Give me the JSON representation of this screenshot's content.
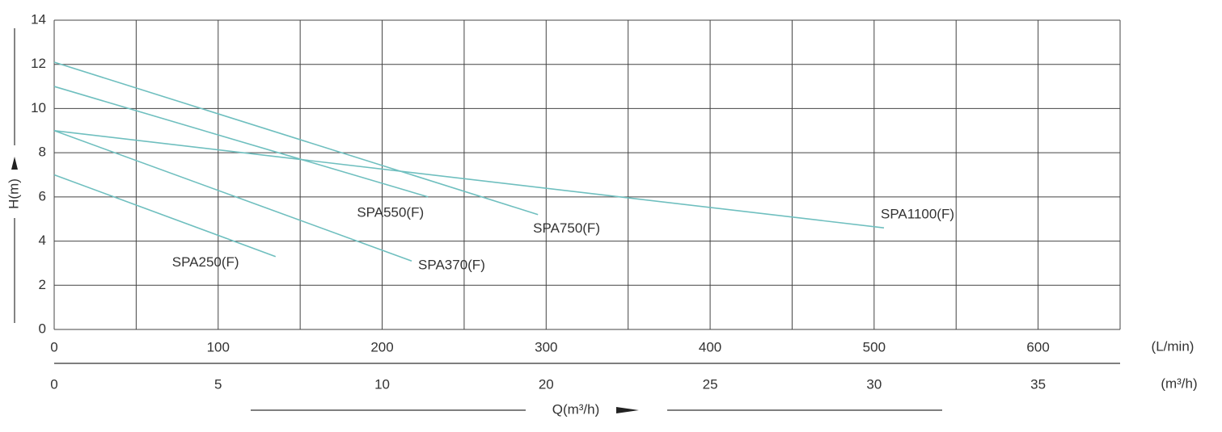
{
  "chart_data": {
    "type": "line",
    "x_label": "(L/min)",
    "x2_label": "(m³/h)",
    "x_title": "Q(m³/h)",
    "y_title": "H(m)",
    "xlim": [
      0,
      650
    ],
    "xticks": [
      0,
      100,
      200,
      300,
      400,
      500,
      600
    ],
    "x_minor_grid": [
      50,
      150,
      250,
      350,
      450,
      550,
      650
    ],
    "x2_tick_labels": [
      0,
      5,
      10,
      20,
      25,
      30,
      35
    ],
    "ylim": [
      0,
      14
    ],
    "yticks": [
      0,
      2,
      4,
      6,
      8,
      10,
      12,
      14
    ],
    "grid": true,
    "series": [
      {
        "name": "SPA250(F)",
        "color": "#6fbfbf",
        "x": [
          0,
          135
        ],
        "values": [
          7,
          3.3
        ]
      },
      {
        "name": "SPA370(F)",
        "color": "#6fbfbf",
        "x": [
          0,
          218
        ],
        "values": [
          9,
          3.1
        ]
      },
      {
        "name": "SPA550(F)",
        "color": "#6fbfbf",
        "x": [
          0,
          228
        ],
        "values": [
          11,
          6
        ]
      },
      {
        "name": "SPA750(F)",
        "color": "#6fbfbf",
        "x": [
          0,
          295
        ],
        "values": [
          12.1,
          5.2
        ]
      },
      {
        "name": "SPA1100(F)",
        "color": "#6fbfbf",
        "x": [
          0,
          506
        ],
        "values": [
          9,
          4.6
        ]
      }
    ]
  }
}
